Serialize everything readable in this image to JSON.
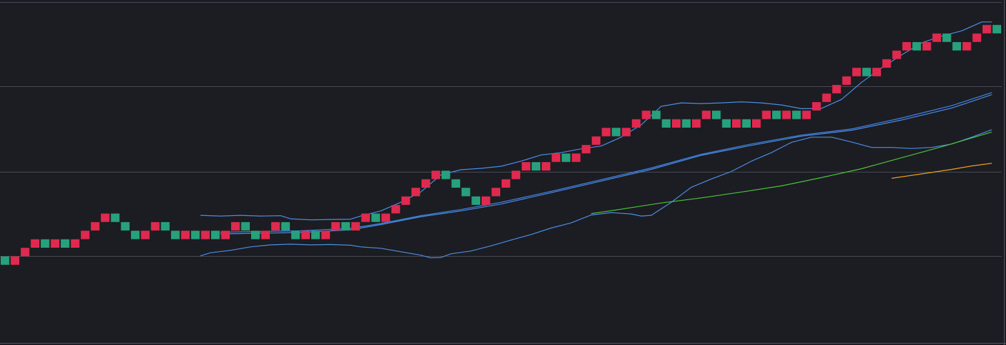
{
  "theme": {
    "background": "#1c1d22",
    "grid": "#4a4b52",
    "frame": "#555660",
    "up_brick": "#e0294e",
    "down_brick": "#26a17b",
    "band_color": "#4a8fe8",
    "ma_fast_color": "#4a8fe8",
    "ma_slow_color": "#3f86f0",
    "ma_green_color": "#4cc73a",
    "ma_orange_color": "#f2a21a"
  },
  "chart_data": {
    "type": "renko",
    "grid": true,
    "xlim": [
      0,
      100
    ],
    "ylim": [
      0,
      100
    ],
    "grid_levels": [
      99.4,
      74.8,
      50.0,
      25.4
    ],
    "bricks": [
      {
        "i": 0,
        "y": 24,
        "dir": "down"
      },
      {
        "i": 1,
        "y": 24,
        "dir": "up"
      },
      {
        "i": 2,
        "y": 26.5,
        "dir": "up"
      },
      {
        "i": 3,
        "y": 29,
        "dir": "up"
      },
      {
        "i": 4,
        "y": 29,
        "dir": "down"
      },
      {
        "i": 5,
        "y": 29,
        "dir": "up"
      },
      {
        "i": 6,
        "y": 29,
        "dir": "down"
      },
      {
        "i": 7,
        "y": 29,
        "dir": "up"
      },
      {
        "i": 8,
        "y": 31.5,
        "dir": "up"
      },
      {
        "i": 9,
        "y": 34,
        "dir": "up"
      },
      {
        "i": 10,
        "y": 36.5,
        "dir": "up"
      },
      {
        "i": 11,
        "y": 36.5,
        "dir": "down"
      },
      {
        "i": 12,
        "y": 34,
        "dir": "down"
      },
      {
        "i": 13,
        "y": 31.5,
        "dir": "down"
      },
      {
        "i": 14,
        "y": 31.5,
        "dir": "up"
      },
      {
        "i": 15,
        "y": 34,
        "dir": "up"
      },
      {
        "i": 16,
        "y": 34,
        "dir": "down"
      },
      {
        "i": 17,
        "y": 31.5,
        "dir": "down"
      },
      {
        "i": 18,
        "y": 31.5,
        "dir": "up"
      },
      {
        "i": 19,
        "y": 31.5,
        "dir": "down"
      },
      {
        "i": 20,
        "y": 31.5,
        "dir": "up"
      },
      {
        "i": 21,
        "y": 31.5,
        "dir": "down"
      },
      {
        "i": 22,
        "y": 31.5,
        "dir": "up"
      },
      {
        "i": 23,
        "y": 34,
        "dir": "up"
      },
      {
        "i": 24,
        "y": 34,
        "dir": "down"
      },
      {
        "i": 25,
        "y": 31.5,
        "dir": "down"
      },
      {
        "i": 26,
        "y": 31.5,
        "dir": "up"
      },
      {
        "i": 27,
        "y": 34,
        "dir": "up"
      },
      {
        "i": 28,
        "y": 34,
        "dir": "down"
      },
      {
        "i": 29,
        "y": 31.5,
        "dir": "down"
      },
      {
        "i": 30,
        "y": 31.5,
        "dir": "up"
      },
      {
        "i": 31,
        "y": 31.5,
        "dir": "down"
      },
      {
        "i": 32,
        "y": 31.5,
        "dir": "up"
      },
      {
        "i": 33,
        "y": 34,
        "dir": "up"
      },
      {
        "i": 34,
        "y": 34,
        "dir": "down"
      },
      {
        "i": 35,
        "y": 34,
        "dir": "up"
      },
      {
        "i": 36,
        "y": 36.5,
        "dir": "up"
      },
      {
        "i": 37,
        "y": 36.5,
        "dir": "down"
      },
      {
        "i": 38,
        "y": 36.5,
        "dir": "up"
      },
      {
        "i": 39,
        "y": 39,
        "dir": "up"
      },
      {
        "i": 40,
        "y": 41.5,
        "dir": "up"
      },
      {
        "i": 41,
        "y": 44,
        "dir": "up"
      },
      {
        "i": 42,
        "y": 46.5,
        "dir": "up"
      },
      {
        "i": 43,
        "y": 49,
        "dir": "up"
      },
      {
        "i": 44,
        "y": 49,
        "dir": "down"
      },
      {
        "i": 45,
        "y": 46.5,
        "dir": "down"
      },
      {
        "i": 46,
        "y": 44,
        "dir": "down"
      },
      {
        "i": 47,
        "y": 41.5,
        "dir": "down"
      },
      {
        "i": 48,
        "y": 41.5,
        "dir": "up"
      },
      {
        "i": 49,
        "y": 44,
        "dir": "up"
      },
      {
        "i": 50,
        "y": 46.5,
        "dir": "up"
      },
      {
        "i": 51,
        "y": 49,
        "dir": "up"
      },
      {
        "i": 52,
        "y": 51.5,
        "dir": "up"
      },
      {
        "i": 53,
        "y": 51.5,
        "dir": "down"
      },
      {
        "i": 54,
        "y": 51.5,
        "dir": "up"
      },
      {
        "i": 55,
        "y": 54,
        "dir": "up"
      },
      {
        "i": 56,
        "y": 54,
        "dir": "down"
      },
      {
        "i": 57,
        "y": 54,
        "dir": "up"
      },
      {
        "i": 58,
        "y": 56.5,
        "dir": "up"
      },
      {
        "i": 59,
        "y": 59,
        "dir": "up"
      },
      {
        "i": 60,
        "y": 61.5,
        "dir": "up"
      },
      {
        "i": 61,
        "y": 61.5,
        "dir": "down"
      },
      {
        "i": 62,
        "y": 61.5,
        "dir": "up"
      },
      {
        "i": 63,
        "y": 64,
        "dir": "up"
      },
      {
        "i": 64,
        "y": 66.5,
        "dir": "up"
      },
      {
        "i": 65,
        "y": 66.5,
        "dir": "down"
      },
      {
        "i": 66,
        "y": 64,
        "dir": "down"
      },
      {
        "i": 67,
        "y": 64,
        "dir": "up"
      },
      {
        "i": 68,
        "y": 64,
        "dir": "down"
      },
      {
        "i": 69,
        "y": 64,
        "dir": "up"
      },
      {
        "i": 70,
        "y": 66.5,
        "dir": "up"
      },
      {
        "i": 71,
        "y": 66.5,
        "dir": "down"
      },
      {
        "i": 72,
        "y": 64,
        "dir": "down"
      },
      {
        "i": 73,
        "y": 64,
        "dir": "up"
      },
      {
        "i": 74,
        "y": 64,
        "dir": "down"
      },
      {
        "i": 75,
        "y": 64,
        "dir": "up"
      },
      {
        "i": 76,
        "y": 66.5,
        "dir": "up"
      },
      {
        "i": 77,
        "y": 66.5,
        "dir": "down"
      },
      {
        "i": 78,
        "y": 66.5,
        "dir": "up"
      },
      {
        "i": 79,
        "y": 66.5,
        "dir": "down"
      },
      {
        "i": 80,
        "y": 66.5,
        "dir": "up"
      },
      {
        "i": 81,
        "y": 69,
        "dir": "up"
      },
      {
        "i": 82,
        "y": 71.5,
        "dir": "up"
      },
      {
        "i": 83,
        "y": 74,
        "dir": "up"
      },
      {
        "i": 84,
        "y": 76.5,
        "dir": "up"
      },
      {
        "i": 85,
        "y": 79,
        "dir": "up"
      },
      {
        "i": 86,
        "y": 79,
        "dir": "down"
      },
      {
        "i": 87,
        "y": 79,
        "dir": "up"
      },
      {
        "i": 88,
        "y": 81.5,
        "dir": "up"
      },
      {
        "i": 89,
        "y": 84,
        "dir": "up"
      },
      {
        "i": 90,
        "y": 86.5,
        "dir": "up"
      },
      {
        "i": 91,
        "y": 86.5,
        "dir": "down"
      },
      {
        "i": 92,
        "y": 86.5,
        "dir": "up"
      },
      {
        "i": 93,
        "y": 89,
        "dir": "up"
      },
      {
        "i": 94,
        "y": 89,
        "dir": "down"
      },
      {
        "i": 95,
        "y": 86.5,
        "dir": "down"
      },
      {
        "i": 96,
        "y": 86.5,
        "dir": "up"
      },
      {
        "i": 97,
        "y": 89,
        "dir": "up"
      },
      {
        "i": 98,
        "y": 91.5,
        "dir": "up"
      },
      {
        "i": 99,
        "y": 91.5,
        "dir": "down"
      }
    ],
    "series": [
      {
        "key": "band_upper",
        "color_key": "band_color",
        "points": [
          [
            20,
            37.2
          ],
          [
            22,
            37.0
          ],
          [
            24,
            37.2
          ],
          [
            26,
            37.0
          ],
          [
            28,
            37.1
          ],
          [
            29,
            36.2
          ],
          [
            31,
            35.9
          ],
          [
            33,
            36.0
          ],
          [
            35,
            36.1
          ],
          [
            36,
            37.0
          ],
          [
            38,
            38.5
          ],
          [
            40,
            41.0
          ],
          [
            42,
            44.0
          ],
          [
            44,
            49.0
          ],
          [
            46,
            50.5
          ],
          [
            48,
            50.9
          ],
          [
            50,
            51.5
          ],
          [
            52,
            53.0
          ],
          [
            54,
            54.8
          ],
          [
            56,
            55.5
          ],
          [
            58,
            56.6
          ],
          [
            60,
            57.4
          ],
          [
            62,
            60.0
          ],
          [
            64,
            63.6
          ],
          [
            66,
            69.0
          ],
          [
            68,
            70.0
          ],
          [
            70,
            69.8
          ],
          [
            72,
            70.0
          ],
          [
            74,
            70.3
          ],
          [
            76,
            70.0
          ],
          [
            78,
            69.4
          ],
          [
            80,
            68.3
          ],
          [
            82,
            68.4
          ],
          [
            84,
            71.0
          ],
          [
            86,
            76.0
          ],
          [
            88,
            80.2
          ],
          [
            90,
            84.0
          ],
          [
            92,
            87.5
          ],
          [
            94,
            89.5
          ],
          [
            96,
            91.0
          ],
          [
            98,
            93.6
          ],
          [
            99,
            93.6
          ]
        ]
      },
      {
        "key": "band_lower",
        "color_key": "band_color",
        "points": [
          [
            20,
            25.4
          ],
          [
            21,
            26.3
          ],
          [
            23,
            27.0
          ],
          [
            25,
            28.0
          ],
          [
            27,
            28.6
          ],
          [
            29,
            28.8
          ],
          [
            31,
            28.6
          ],
          [
            33,
            28.7
          ],
          [
            35,
            28.5
          ],
          [
            36,
            28.0
          ],
          [
            38,
            27.6
          ],
          [
            40,
            26.6
          ],
          [
            42,
            25.6
          ],
          [
            43,
            24.8
          ],
          [
            44,
            24.9
          ],
          [
            45,
            26.0
          ],
          [
            47,
            26.8
          ],
          [
            49,
            28.3
          ],
          [
            51,
            30.0
          ],
          [
            53,
            31.6
          ],
          [
            55,
            33.5
          ],
          [
            57,
            35.0
          ],
          [
            59,
            37.3
          ],
          [
            61,
            38.0
          ],
          [
            63,
            37.6
          ],
          [
            64,
            37.0
          ],
          [
            65,
            37.2
          ],
          [
            67,
            41.0
          ],
          [
            69,
            45.4
          ],
          [
            71,
            47.8
          ],
          [
            73,
            50.0
          ],
          [
            75,
            53.0
          ],
          [
            77,
            55.5
          ],
          [
            79,
            58.5
          ],
          [
            81,
            60.0
          ],
          [
            83,
            60.0
          ],
          [
            85,
            58.6
          ],
          [
            87,
            57.0
          ],
          [
            89,
            57.0
          ],
          [
            91,
            56.7
          ],
          [
            93,
            57.0
          ],
          [
            95,
            58.0
          ],
          [
            97,
            60.0
          ],
          [
            99,
            62.2
          ]
        ]
      },
      {
        "key": "ma_fast",
        "color_key": "ma_fast_color",
        "points": [
          [
            22,
            31.8
          ],
          [
            26,
            32.0
          ],
          [
            30,
            32.2
          ],
          [
            35,
            33.0
          ],
          [
            38,
            34.5
          ],
          [
            42,
            36.8
          ],
          [
            46,
            38.5
          ],
          [
            50,
            40.5
          ],
          [
            55,
            43.8
          ],
          [
            60,
            47.2
          ],
          [
            65,
            50.6
          ],
          [
            70,
            54.7
          ],
          [
            75,
            57.6
          ],
          [
            80,
            60.3
          ],
          [
            85,
            62.0
          ],
          [
            90,
            65.0
          ],
          [
            95,
            68.5
          ],
          [
            99,
            72.4
          ]
        ]
      },
      {
        "key": "ma_slow",
        "color_key": "ma_slow_color",
        "points": [
          [
            22,
            32.3
          ],
          [
            26,
            32.5
          ],
          [
            30,
            32.7
          ],
          [
            35,
            33.4
          ],
          [
            38,
            34.8
          ],
          [
            42,
            37.1
          ],
          [
            46,
            38.9
          ],
          [
            50,
            41.0
          ],
          [
            55,
            44.2
          ],
          [
            60,
            47.6
          ],
          [
            65,
            51.0
          ],
          [
            70,
            55.0
          ],
          [
            75,
            58.0
          ],
          [
            80,
            60.6
          ],
          [
            85,
            62.4
          ],
          [
            90,
            65.6
          ],
          [
            95,
            69.2
          ],
          [
            99,
            73.0
          ]
        ]
      },
      {
        "key": "ma_green",
        "color_key": "ma_green_color",
        "points": [
          [
            59,
            37.7
          ],
          [
            62,
            39.0
          ],
          [
            66,
            40.8
          ],
          [
            70,
            42.3
          ],
          [
            74,
            44.0
          ],
          [
            78,
            45.8
          ],
          [
            82,
            48.2
          ],
          [
            86,
            50.8
          ],
          [
            90,
            54.0
          ],
          [
            94,
            57.2
          ],
          [
            99,
            61.5
          ]
        ]
      },
      {
        "key": "ma_orange",
        "color_key": "ma_orange_color",
        "points": [
          [
            89,
            48.0
          ],
          [
            92,
            49.3
          ],
          [
            95,
            50.6
          ],
          [
            97,
            51.6
          ],
          [
            99,
            52.4
          ]
        ]
      }
    ]
  }
}
